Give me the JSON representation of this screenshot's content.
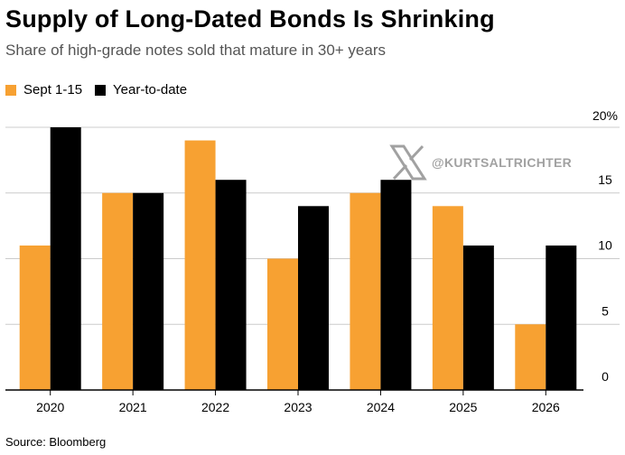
{
  "title": "Supply of Long-Dated Bonds Is Shrinking",
  "subtitle": "Share of high-grade notes sold that mature in 30+ years",
  "source": "Source: Bloomberg",
  "watermark": {
    "handle": "@KURTSALTRICHTER",
    "icon": "x-logo-icon"
  },
  "colors": {
    "sept": "#F7A132",
    "ytd": "#000000",
    "grid": "#cccccc"
  },
  "chart_data": {
    "type": "bar",
    "categories": [
      "2020",
      "2021",
      "2022",
      "2023",
      "2024",
      "2025",
      "2026"
    ],
    "series": [
      {
        "name": "Sept 1-15",
        "values": [
          11,
          15,
          19,
          10,
          15,
          14,
          5
        ]
      },
      {
        "name": "Year-to-date",
        "values": [
          20,
          15,
          16,
          14,
          16,
          11,
          11
        ]
      }
    ],
    "yticks": [
      "0",
      "5",
      "10",
      "15",
      "20%"
    ],
    "ylim": [
      0,
      20
    ],
    "grid": true,
    "legend_position": "top-left",
    "y_axis_side": "right"
  }
}
